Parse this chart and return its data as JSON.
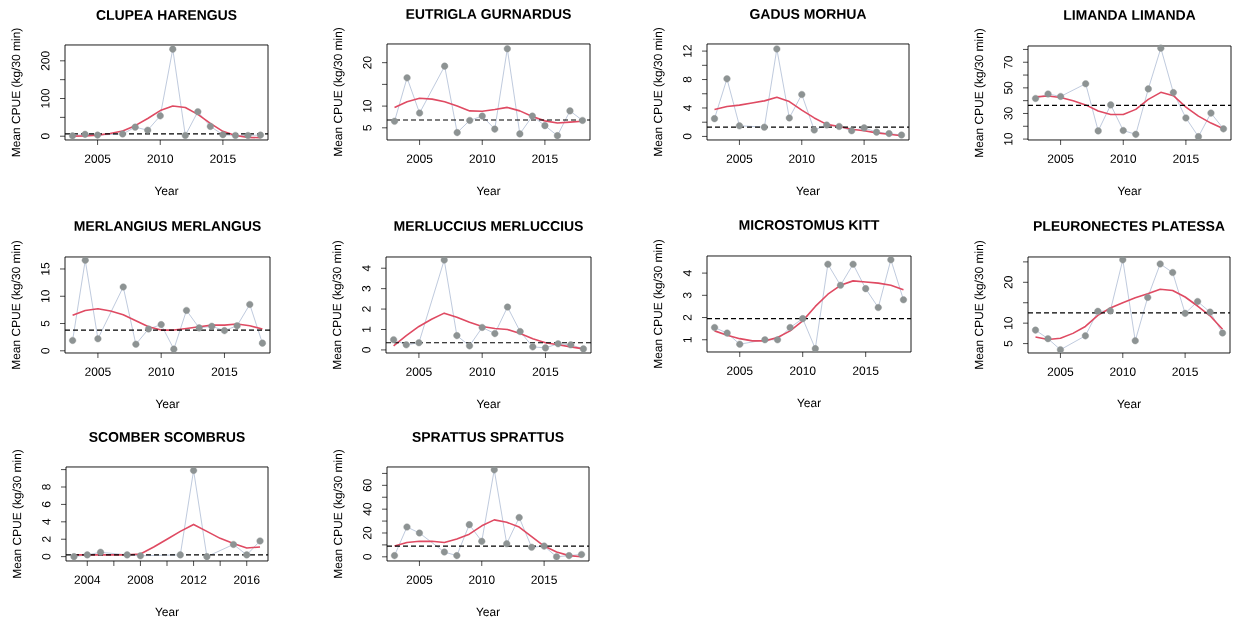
{
  "chart_data": [
    {
      "type": "line",
      "title": "CLUPEA HARENGUS",
      "xlabel": "Year",
      "ylabel": "Mean CPUE (kg/30 min)",
      "x": [
        2003,
        2004,
        2005,
        2007,
        2008,
        2009,
        2010,
        2011,
        2012,
        2013,
        2014,
        2015,
        2016,
        2017,
        2018
      ],
      "xlim": [
        2002.4,
        2018.6
      ],
      "xticks": [
        2005,
        2010,
        2015
      ],
      "ylim": [
        -10,
        242
      ],
      "yticks": [
        0,
        {
          "value": 50,
          "label": null
        },
        100,
        {
          "value": 150,
          "label": null
        },
        200
      ],
      "series": [
        {
          "type": "line",
          "marker": "none",
          "color": "#a3b3cf",
          "values": [
            1,
            5,
            3,
            6,
            24,
            16,
            54,
            231,
            2,
            65,
            26,
            4,
            2,
            2,
            3
          ]
        },
        {
          "type": "scatter",
          "marker": "circle",
          "color": "#8d9393",
          "values": [
            1,
            5,
            3,
            6,
            24,
            16,
            54,
            231,
            2,
            65,
            26,
            4,
            2,
            2,
            3
          ]
        },
        {
          "type": "line",
          "marker": "none",
          "color": "#df4a62",
          "x": [
            2003,
            2004,
            2005,
            2006,
            2007,
            2008,
            2009,
            2010,
            2011,
            2012,
            2013,
            2014,
            2015,
            2016,
            2017,
            2018
          ],
          "values": [
            0,
            1,
            3,
            7,
            14,
            28,
            47,
            68,
            80,
            76,
            58,
            34,
            13,
            2,
            -3,
            -4
          ]
        }
      ],
      "ref_lines": [
        {
          "axis": "y",
          "value": 6,
          "color": "#000000",
          "line_style": "dashed"
        }
      ]
    },
    {
      "type": "line",
      "title": "EUTRIGLA GURNARDUS",
      "xlabel": "Year",
      "ylabel": "Mean CPUE (kg/30 min)",
      "x": [
        2003,
        2004,
        2005,
        2007,
        2008,
        2009,
        2010,
        2011,
        2012,
        2013,
        2014,
        2015,
        2016,
        2017,
        2018
      ],
      "xlim": [
        2002.4,
        2018.6
      ],
      "xticks": [
        2005,
        2010,
        2015
      ],
      "ylim": [
        2.2,
        24.3
      ],
      "yticks": [
        5,
        10,
        {
          "value": 15,
          "label": null
        },
        20
      ],
      "series": [
        {
          "type": "line",
          "marker": "none",
          "color": "#a3b3cf",
          "values": [
            6.5,
            16.5,
            8.4,
            19.2,
            3.9,
            6.7,
            7.7,
            4.7,
            23.2,
            3.6,
            7.7,
            5.5,
            3.2,
            8.9,
            6.7
          ]
        },
        {
          "type": "scatter",
          "marker": "circle",
          "color": "#8d9393",
          "values": [
            6.5,
            16.5,
            8.4,
            19.2,
            3.9,
            6.7,
            7.7,
            4.7,
            23.2,
            3.6,
            7.7,
            5.5,
            3.2,
            8.9,
            6.7
          ]
        },
        {
          "type": "line",
          "marker": "none",
          "color": "#df4a62",
          "x": [
            2003,
            2004,
            2005,
            2006,
            2007,
            2008,
            2009,
            2010,
            2011,
            2012,
            2013,
            2014,
            2015,
            2016,
            2017,
            2018
          ],
          "values": [
            9.7,
            11.0,
            11.8,
            11.6,
            11.0,
            10.0,
            8.9,
            8.8,
            9.2,
            9.7,
            8.9,
            7.6,
            6.6,
            6.1,
            6.3,
            6.5
          ]
        }
      ],
      "ref_lines": [
        {
          "axis": "y",
          "value": 6.8,
          "color": "#000000",
          "line_style": "dashed"
        }
      ]
    },
    {
      "type": "line",
      "title": "GADUS MORHUA",
      "xlabel": "Year",
      "ylabel": "Mean CPUE (kg/30 min)",
      "x": [
        2003,
        2004,
        2005,
        2007,
        2008,
        2009,
        2010,
        2011,
        2012,
        2013,
        2014,
        2015,
        2016,
        2017,
        2018
      ],
      "xlim": [
        2002.4,
        2018.6
      ],
      "xticks": [
        2005,
        2010,
        2015
      ],
      "ylim": [
        -0.5,
        13.0
      ],
      "yticks": [
        0,
        {
          "value": 2,
          "label": null
        },
        4,
        {
          "value": 6,
          "label": null
        },
        8,
        {
          "value": 10,
          "label": null
        },
        12
      ],
      "series": [
        {
          "type": "line",
          "marker": "none",
          "color": "#a3b3cf",
          "values": [
            2.5,
            8.1,
            1.5,
            1.3,
            12.3,
            2.6,
            5.9,
            0.9,
            1.6,
            1.4,
            0.8,
            1.2,
            0.6,
            0.4,
            0.2
          ]
        },
        {
          "type": "scatter",
          "marker": "circle",
          "color": "#8d9393",
          "values": [
            2.5,
            8.1,
            1.5,
            1.3,
            12.3,
            2.6,
            5.9,
            0.9,
            1.6,
            1.4,
            0.8,
            1.2,
            0.6,
            0.4,
            0.2
          ]
        },
        {
          "type": "line",
          "marker": "none",
          "color": "#df4a62",
          "x": [
            2003,
            2004,
            2005,
            2006,
            2007,
            2008,
            2009,
            2010,
            2011,
            2012,
            2013,
            2014,
            2015,
            2016,
            2017,
            2018
          ],
          "values": [
            3.8,
            4.2,
            4.4,
            4.7,
            5.0,
            5.5,
            4.9,
            3.7,
            2.6,
            1.7,
            1.4,
            1.0,
            0.8,
            0.5,
            0.3,
            0.1
          ]
        }
      ],
      "ref_lines": [
        {
          "axis": "y",
          "value": 1.3,
          "color": "#000000",
          "line_style": "dashed"
        }
      ]
    },
    {
      "type": "line",
      "title": "LIMANDA LIMANDA",
      "xlabel": "Year",
      "ylabel": "Mean CPUE (kg/30 min)",
      "x": [
        2003,
        2004,
        2005,
        2007,
        2008,
        2009,
        2010,
        2011,
        2012,
        2013,
        2014,
        2015,
        2016,
        2017,
        2018
      ],
      "xlim": [
        2002.4,
        2018.6
      ],
      "xticks": [
        2005,
        2010,
        2015
      ],
      "ylim": [
        9.3,
        82.7
      ],
      "yticks": [
        10,
        {
          "value": 20,
          "label": null
        },
        30,
        {
          "value": 40,
          "label": null
        },
        50,
        {
          "value": 60,
          "label": null
        },
        70,
        {
          "value": 80,
          "label": null
        }
      ],
      "series": [
        {
          "type": "line",
          "marker": "none",
          "color": "#a3b3cf",
          "values": [
            41.7,
            45.2,
            43.3,
            53.2,
            16.4,
            36.7,
            16.7,
            13.7,
            49.2,
            81,
            46.3,
            26.5,
            11.9,
            30.3,
            18.0
          ]
        },
        {
          "type": "scatter",
          "marker": "circle",
          "color": "#8d9393",
          "values": [
            41.7,
            45.2,
            43.3,
            53.2,
            16.4,
            36.7,
            16.7,
            13.7,
            49.2,
            81,
            46.3,
            26.5,
            11.9,
            30.3,
            18.0
          ]
        },
        {
          "type": "line",
          "marker": "none",
          "color": "#df4a62",
          "x": [
            2003,
            2004,
            2005,
            2006,
            2007,
            2008,
            2009,
            2010,
            2011,
            2012,
            2013,
            2014,
            2015,
            2016,
            2017,
            2018
          ],
          "values": [
            43,
            43.6,
            42.5,
            39.9,
            36.7,
            31.9,
            29.2,
            29.2,
            33.2,
            41,
            46.5,
            43.9,
            35,
            27.9,
            22.5,
            18
          ]
        }
      ],
      "ref_lines": [
        {
          "axis": "y",
          "value": 36.4,
          "color": "#000000",
          "line_style": "dashed"
        }
      ]
    },
    {
      "type": "line",
      "title": "MERLANGIUS MERLANGUS",
      "xlabel": "Year",
      "ylabel": "Mean CPUE (kg/30 min)",
      "x": [
        2003,
        2004,
        2005,
        2007,
        2008,
        2009,
        2010,
        2011,
        2012,
        2013,
        2014,
        2015,
        2016,
        2017,
        2018
      ],
      "xlim": [
        2002.4,
        2018.6
      ],
      "xticks": [
        2005,
        2010,
        2015
      ],
      "ylim": [
        -0.4,
        17.2
      ],
      "yticks": [
        0,
        5,
        10,
        15
      ],
      "series": [
        {
          "type": "line",
          "marker": "none",
          "color": "#a3b3cf",
          "values": [
            1.9,
            16.6,
            2.2,
            11.7,
            1.2,
            4.0,
            4.8,
            0.3,
            7.4,
            4.2,
            4.5,
            3.7,
            4.6,
            8.5,
            1.4
          ]
        },
        {
          "type": "scatter",
          "marker": "circle",
          "color": "#8d9393",
          "values": [
            1.9,
            16.6,
            2.2,
            11.7,
            1.2,
            4.0,
            4.8,
            0.3,
            7.4,
            4.2,
            4.5,
            3.7,
            4.6,
            8.5,
            1.4
          ]
        },
        {
          "type": "line",
          "marker": "none",
          "color": "#df4a62",
          "x": [
            2003,
            2004,
            2005,
            2006,
            2007,
            2008,
            2009,
            2010,
            2011,
            2012,
            2013,
            2014,
            2015,
            2016,
            2017,
            2018
          ],
          "values": [
            6.5,
            7.4,
            7.7,
            7.3,
            6.6,
            5.5,
            4.4,
            3.8,
            3.8,
            4.1,
            4.4,
            4.7,
            4.7,
            4.9,
            4.6,
            4.0
          ]
        }
      ],
      "ref_lines": [
        {
          "axis": "y",
          "value": 3.8,
          "color": "#000000",
          "line_style": "dashed"
        }
      ]
    },
    {
      "type": "line",
      "title": "MERLUCCIUS MERLUCCIUS",
      "xlabel": "Year",
      "ylabel": "Mean CPUE (kg/30 min)",
      "x": [
        2003,
        2004,
        2005,
        2007,
        2008,
        2009,
        2010,
        2011,
        2012,
        2013,
        2014,
        2015,
        2016,
        2017,
        2018
      ],
      "xlim": [
        2002.4,
        2018.6
      ],
      "xticks": [
        2005,
        2010,
        2015
      ],
      "ylim": [
        -0.15,
        4.55
      ],
      "yticks": [
        0,
        1,
        2,
        3,
        4
      ],
      "series": [
        {
          "type": "line",
          "marker": "none",
          "color": "#a3b3cf",
          "values": [
            0.5,
            0.25,
            0.35,
            4.4,
            0.7,
            0.2,
            1.1,
            0.8,
            2.1,
            0.9,
            0.15,
            0.1,
            0.3,
            0.25,
            0.05
          ]
        },
        {
          "type": "scatter",
          "marker": "circle",
          "color": "#8d9393",
          "values": [
            0.5,
            0.25,
            0.35,
            4.4,
            0.7,
            0.2,
            1.1,
            0.8,
            2.1,
            0.9,
            0.15,
            0.1,
            0.3,
            0.25,
            0.05
          ]
        },
        {
          "type": "line",
          "marker": "none",
          "color": "#df4a62",
          "x": [
            2003,
            2004,
            2005,
            2006,
            2007,
            2008,
            2009,
            2010,
            2011,
            2012,
            2013,
            2014,
            2015,
            2016,
            2017,
            2018
          ],
          "values": [
            0.2,
            0.7,
            1.15,
            1.5,
            1.8,
            1.6,
            1.35,
            1.15,
            1.05,
            1.0,
            0.8,
            0.55,
            0.35,
            0.25,
            0.15,
            0.05
          ]
        }
      ],
      "ref_lines": [
        {
          "axis": "y",
          "value": 0.35,
          "color": "#000000",
          "line_style": "dashed"
        }
      ]
    },
    {
      "type": "line",
      "title": "MICROSTOMUS KITT",
      "xlabel": "Year",
      "ylabel": "Mean CPUE (kg/30 min)",
      "x": [
        2003,
        2004,
        2005,
        2007,
        2008,
        2009,
        2010,
        2011,
        2012,
        2013,
        2014,
        2015,
        2016,
        2017,
        2018
      ],
      "xlim": [
        2002.4,
        2018.6
      ],
      "xticks": [
        2005,
        2010,
        2015
      ],
      "ylim": [
        0.45,
        4.77
      ],
      "yticks": [
        1,
        2,
        3,
        4
      ],
      "series": [
        {
          "type": "line",
          "marker": "none",
          "color": "#a3b3cf",
          "values": [
            1.55,
            1.3,
            0.8,
            1.0,
            1.0,
            1.55,
            1.95,
            0.6,
            4.4,
            3.45,
            4.4,
            3.3,
            2.45,
            4.6,
            2.8
          ]
        },
        {
          "type": "scatter",
          "marker": "circle",
          "color": "#8d9393",
          "values": [
            1.55,
            1.3,
            0.8,
            1.0,
            1.0,
            1.55,
            1.95,
            0.6,
            4.4,
            3.45,
            4.4,
            3.3,
            2.45,
            4.6,
            2.8
          ]
        },
        {
          "type": "line",
          "marker": "none",
          "color": "#df4a62",
          "x": [
            2003,
            2004,
            2005,
            2006,
            2007,
            2008,
            2009,
            2010,
            2011,
            2012,
            2013,
            2014,
            2015,
            2016,
            2017,
            2018
          ],
          "values": [
            1.4,
            1.2,
            1.05,
            0.95,
            0.95,
            1.1,
            1.4,
            1.85,
            2.5,
            3.05,
            3.45,
            3.65,
            3.6,
            3.55,
            3.45,
            3.25
          ]
        }
      ],
      "ref_lines": [
        {
          "axis": "y",
          "value": 1.95,
          "color": "#000000",
          "line_style": "dashed"
        }
      ]
    },
    {
      "type": "line",
      "title": "PLEURONECTES PLATESSA",
      "xlabel": "Year",
      "ylabel": "Mean CPUE (kg/30 min)",
      "x": [
        2003,
        2004,
        2005,
        2007,
        2008,
        2009,
        2010,
        2011,
        2012,
        2013,
        2014,
        2015,
        2016,
        2017,
        2018
      ],
      "xlim": [
        2002.4,
        2018.6
      ],
      "xticks": [
        2005,
        2010,
        2015
      ],
      "ylim": [
        2.7,
        26.2
      ],
      "yticks": [
        5,
        10,
        {
          "value": 15,
          "label": null
        },
        20,
        {
          "value": 25,
          "label": null
        }
      ],
      "series": [
        {
          "type": "line",
          "marker": "none",
          "color": "#a3b3cf",
          "values": [
            8.3,
            6.2,
            3.5,
            6.9,
            12.9,
            13.0,
            25.5,
            5.7,
            16.3,
            24.5,
            22.4,
            12.4,
            15.3,
            12.7,
            7.6
          ]
        },
        {
          "type": "scatter",
          "marker": "circle",
          "color": "#8d9393",
          "values": [
            8.3,
            6.2,
            3.5,
            6.9,
            12.9,
            13.0,
            25.5,
            5.7,
            16.3,
            24.5,
            22.4,
            12.4,
            15.3,
            12.7,
            7.6
          ]
        },
        {
          "type": "line",
          "marker": "none",
          "color": "#df4a62",
          "x": [
            2003,
            2004,
            2005,
            2006,
            2007,
            2008,
            2009,
            2010,
            2011,
            2012,
            2013,
            2014,
            2015,
            2016,
            2017,
            2018
          ],
          "values": [
            6.6,
            6.0,
            6.3,
            7.5,
            9.2,
            11.9,
            13.7,
            15.0,
            16.2,
            17.2,
            18.3,
            18.0,
            16.4,
            14.2,
            11.8,
            8.5
          ]
        }
      ],
      "ref_lines": [
        {
          "axis": "y",
          "value": 12.5,
          "color": "#000000",
          "line_style": "dashed"
        }
      ]
    },
    {
      "type": "line",
      "title": "SCOMBER SCOMBRUS",
      "xlabel": "Year",
      "ylabel": "Mean CPUE (kg/30 min)",
      "x": [
        2003,
        2004,
        2005,
        2007,
        2008,
        2011,
        2012,
        2013,
        2015,
        2016,
        2017
      ],
      "xlim": [
        2002.4,
        2017.6
      ],
      "xticks": [
        2004,
        {
          "value": 2006,
          "label": null
        },
        2008,
        {
          "value": 2010,
          "label": null
        },
        2012,
        {
          "value": 2014,
          "label": null
        },
        2016
      ],
      "ylim": [
        -0.5,
        10.3
      ],
      "yticks": [
        0,
        2,
        4,
        6,
        8,
        {
          "value": 10,
          "label": null
        }
      ],
      "series": [
        {
          "type": "line",
          "marker": "none",
          "color": "#a3b3cf",
          "values": [
            0,
            0.2,
            0.5,
            0.2,
            0.1,
            0.2,
            9.9,
            0,
            1.4,
            0.2,
            1.8
          ]
        },
        {
          "type": "scatter",
          "marker": "circle",
          "color": "#8d9393",
          "values": [
            0,
            0.2,
            0.5,
            0.2,
            0.1,
            0.2,
            9.9,
            0,
            1.4,
            0.2,
            1.8
          ]
        },
        {
          "type": "line",
          "marker": "none",
          "color": "#df4a62",
          "x": [
            2003,
            2004,
            2005,
            2006,
            2007,
            2008,
            2009,
            2010,
            2011,
            2012,
            2013,
            2014,
            2015,
            2016,
            2017
          ],
          "values": [
            0.2,
            0.2,
            0.2,
            0.2,
            0.2,
            0.3,
            1.1,
            2.0,
            2.9,
            3.7,
            2.9,
            2.1,
            1.5,
            1.0,
            1.1
          ]
        }
      ],
      "ref_lines": [
        {
          "axis": "y",
          "value": 0.2,
          "color": "#000000",
          "line_style": "dashed"
        }
      ]
    },
    {
      "type": "line",
      "title": "SPRATTUS SPRATTUS",
      "xlabel": "Year",
      "ylabel": "Mean CPUE (kg/30 min)",
      "x": [
        2003,
        2004,
        2005,
        2007,
        2008,
        2009,
        2010,
        2011,
        2012,
        2013,
        2014,
        2015,
        2016,
        2017,
        2018
      ],
      "xlim": [
        2002.4,
        2018.6
      ],
      "xticks": [
        2005,
        2010,
        2015
      ],
      "ylim": [
        -3.5,
        75.4
      ],
      "yticks": [
        0,
        {
          "value": 10,
          "label": null
        },
        20,
        {
          "value": 30,
          "label": null
        },
        40,
        {
          "value": 50,
          "label": null
        },
        60,
        {
          "value": 70,
          "label": null
        }
      ],
      "series": [
        {
          "type": "line",
          "marker": "none",
          "color": "#a3b3cf",
          "values": [
            1,
            25,
            20,
            4,
            1,
            27,
            13,
            73,
            11,
            33,
            8,
            9,
            0,
            1,
            2
          ]
        },
        {
          "type": "scatter",
          "marker": "circle",
          "color": "#8d9393",
          "values": [
            1,
            25,
            20,
            4,
            1,
            27,
            13,
            73,
            11,
            33,
            8,
            9,
            0,
            1,
            2
          ]
        },
        {
          "type": "line",
          "marker": "none",
          "color": "#df4a62",
          "x": [
            2003,
            2004,
            2005,
            2006,
            2007,
            2008,
            2009,
            2010,
            2011,
            2012,
            2013,
            2014,
            2015,
            2016,
            2017,
            2018
          ],
          "values": [
            9,
            12,
            13,
            13,
            12,
            15,
            19,
            26,
            31,
            29,
            25,
            17,
            9,
            4,
            1,
            0
          ]
        }
      ],
      "ref_lines": [
        {
          "axis": "y",
          "value": 9,
          "color": "#000000",
          "line_style": "dashed"
        }
      ]
    }
  ]
}
